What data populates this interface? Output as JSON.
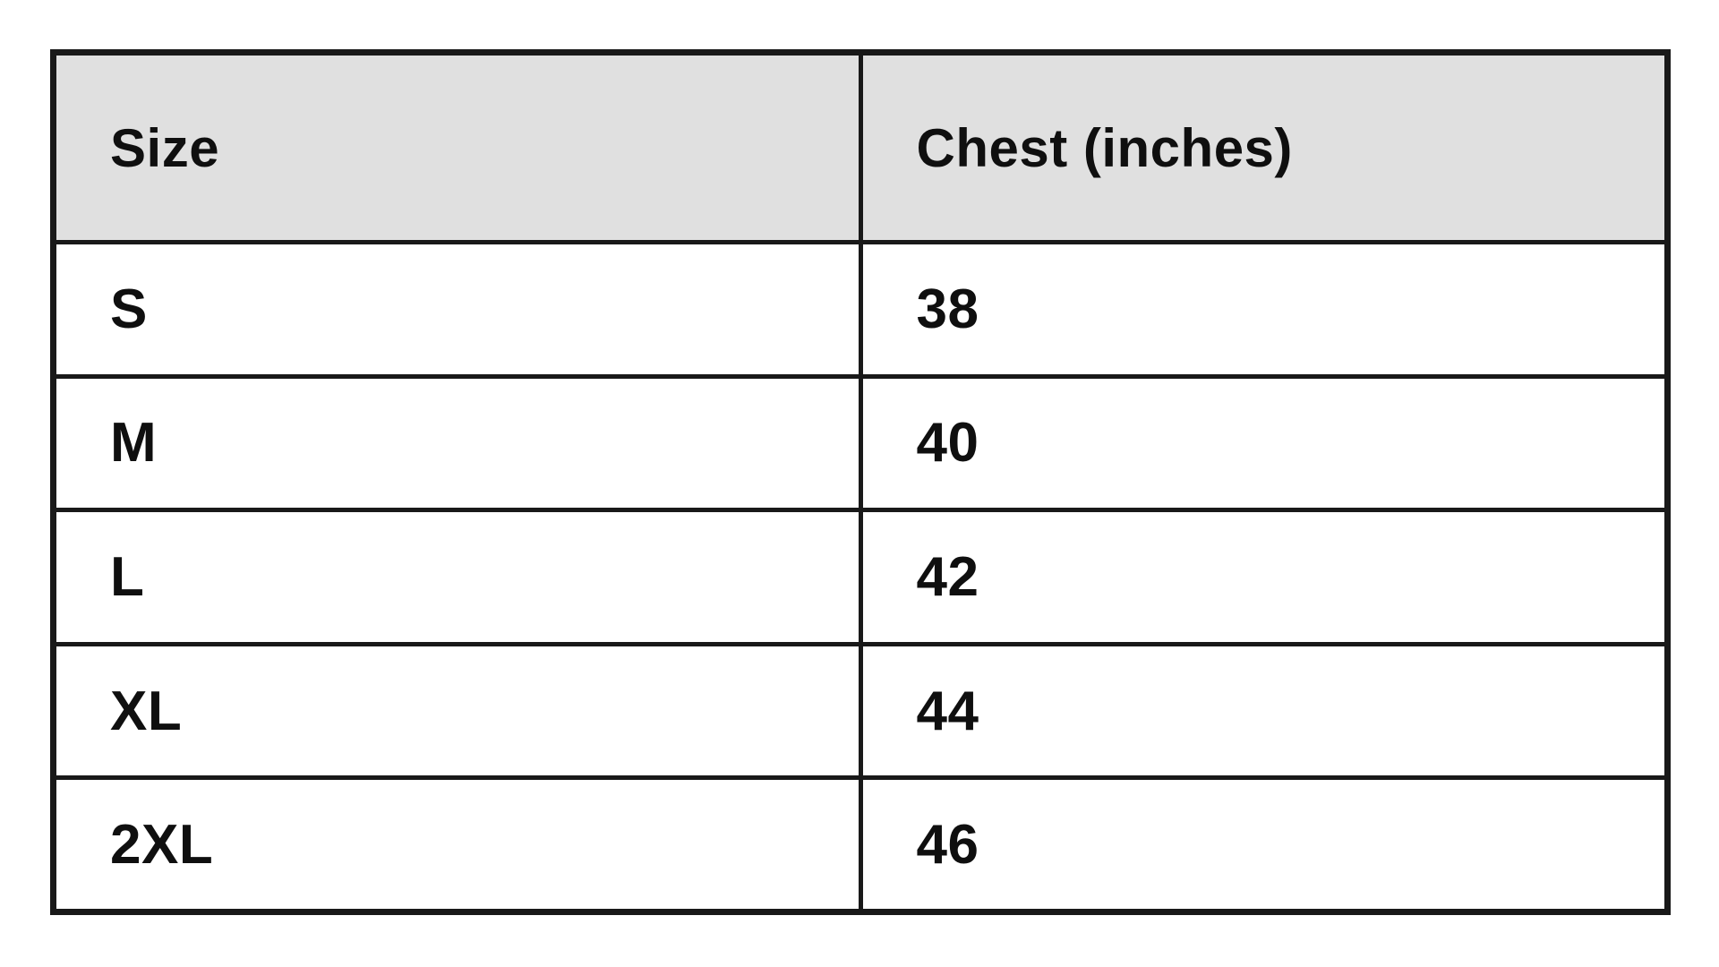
{
  "table": {
    "columns": [
      {
        "label": "Size"
      },
      {
        "label": "Chest (inches)"
      }
    ],
    "rows": [
      {
        "size": "S",
        "chest": "38"
      },
      {
        "size": "M",
        "chest": "40"
      },
      {
        "size": "L",
        "chest": "42"
      },
      {
        "size": "XL",
        "chest": "44"
      },
      {
        "size": "2XL",
        "chest": "46"
      }
    ]
  },
  "colors": {
    "background": "#ffffff",
    "header_bg": "#e0e0e0",
    "border": "#191919",
    "text": "#0f0f0f"
  }
}
